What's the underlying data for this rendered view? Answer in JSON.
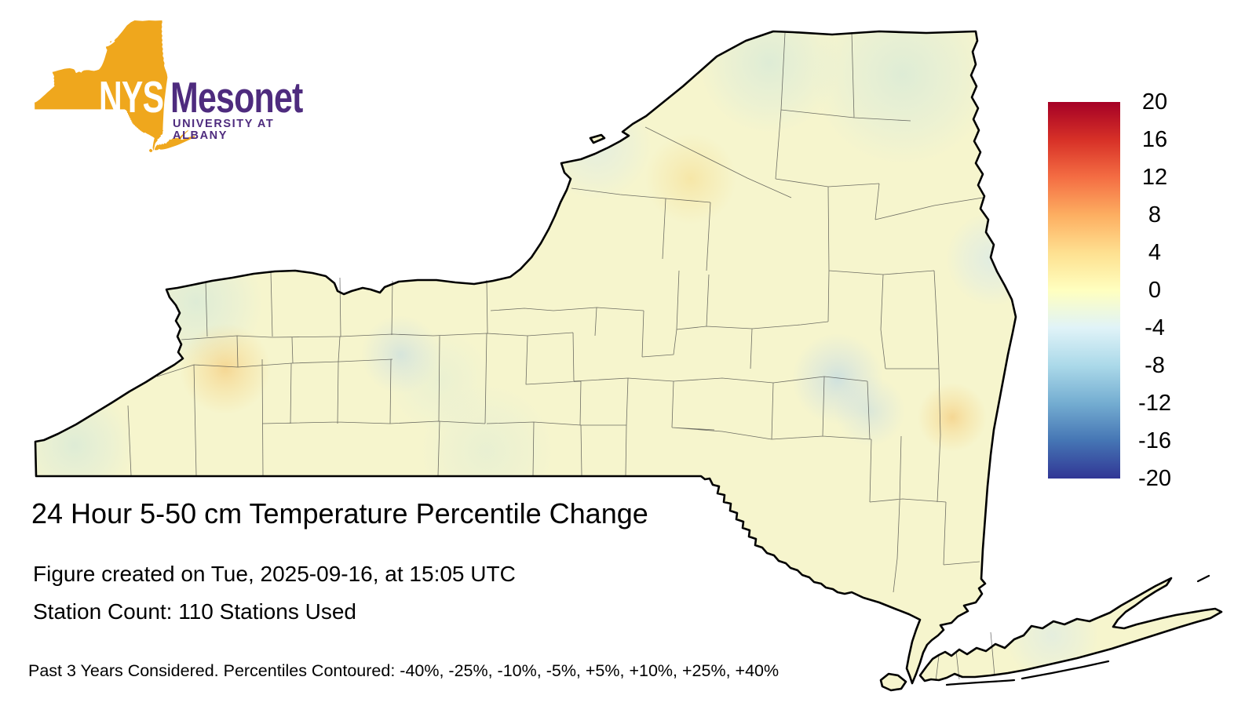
{
  "logo": {
    "nys": "NYS",
    "mesonet": "Mesonet",
    "affiliation": "UNIVERSITY AT ALBANY",
    "gold": "#EFA71D",
    "purple": "#4E2B7E"
  },
  "title": "24 Hour 5-50 cm Temperature Percentile Change",
  "created_line": "Figure created on Tue, 2025-09-16, at 15:05 UTC",
  "station_line": "Station Count: 110 Stations Used",
  "footnote": "Past 3 Years Considered. Percentiles Contoured: -40%, -25%, -10%, -5%, +5%, +10%, +25%, +40%",
  "colorbar": {
    "ticks": [
      "20",
      "16",
      "12",
      "8",
      "4",
      "0",
      "-4",
      "-8",
      "-12",
      "-16",
      "-20"
    ],
    "gradient_stops": [
      "#a50026",
      "#d73027",
      "#f46d43",
      "#fdae61",
      "#fee090",
      "#ffffbf",
      "#e0f3f8",
      "#abd9e9",
      "#74add1",
      "#4575b4",
      "#313695"
    ]
  },
  "map": {
    "region": "New York State counties",
    "base_fill": "#f6f5cd",
    "county_line_color": "#3f3f3f",
    "outline_color": "#000000"
  }
}
